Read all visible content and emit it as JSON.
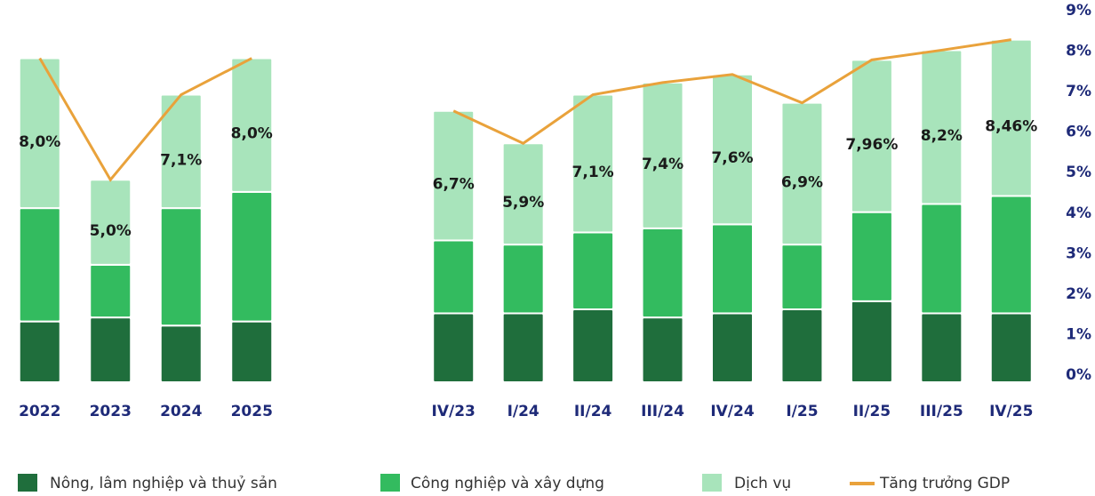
{
  "chart_data": [
    {
      "type": "bar",
      "stacked": true,
      "categories": [
        "2022",
        "2023",
        "2024",
        "2025"
      ],
      "ylim": [
        0,
        9
      ],
      "series": [
        {
          "name": "Nông, lâm nghiệp và thuỷ sản",
          "color": "#1f6e3c",
          "values": [
            1.5,
            1.6,
            1.4,
            1.5
          ]
        },
        {
          "name": "Công nghiệp và xây dựng",
          "color": "#33bb5f",
          "values": [
            2.8,
            1.3,
            2.9,
            3.2
          ]
        },
        {
          "name": "Dịch vụ",
          "color": "#a8e4bb",
          "values": [
            3.7,
            2.1,
            2.8,
            3.3
          ]
        },
        {
          "name": "Tăng trưởng GDP",
          "type": "line",
          "color": "#e9a23b",
          "values": [
            8.0,
            5.0,
            7.1,
            8.0
          ],
          "value_labels": [
            "8,0%",
            "5,0%",
            "7,1%",
            "8,0%"
          ]
        }
      ]
    },
    {
      "type": "bar",
      "stacked": true,
      "categories": [
        "IV/23",
        "I/24",
        "II/24",
        "III/24",
        "IV/24",
        "I/25",
        "II/25",
        "III/25",
        "IV/25"
      ],
      "ylim": [
        0,
        9
      ],
      "yticks": [
        {
          "value": 0,
          "label": "0%"
        },
        {
          "value": 1,
          "label": "1%"
        },
        {
          "value": 2,
          "label": "2%"
        },
        {
          "value": 3,
          "label": "3%"
        },
        {
          "value": 4,
          "label": "4%"
        },
        {
          "value": 5,
          "label": "5%"
        },
        {
          "value": 6,
          "label": "6%"
        },
        {
          "value": 7,
          "label": "7%"
        },
        {
          "value": 8,
          "label": "8%"
        },
        {
          "value": 9,
          "label": "9%"
        }
      ],
      "series": [
        {
          "name": "Nông, lâm nghiệp và thuỷ sản",
          "color": "#1f6e3c",
          "values": [
            1.7,
            1.7,
            1.8,
            1.6,
            1.7,
            1.8,
            2.0,
            1.7,
            1.7
          ]
        },
        {
          "name": "Công nghiệp và xây dựng",
          "color": "#33bb5f",
          "values": [
            1.8,
            1.7,
            1.9,
            2.2,
            2.2,
            1.6,
            2.2,
            2.7,
            2.9
          ]
        },
        {
          "name": "Dịch vụ",
          "color": "#a8e4bb",
          "values": [
            3.2,
            2.5,
            3.4,
            3.6,
            3.7,
            3.5,
            3.76,
            3.8,
            3.86
          ]
        },
        {
          "name": "Tăng trưởng GDP",
          "type": "line",
          "color": "#e9a23b",
          "values": [
            6.7,
            5.9,
            7.1,
            7.4,
            7.6,
            6.9,
            7.96,
            8.2,
            8.46
          ],
          "value_labels": [
            "6,7%",
            "5,9%",
            "7,1%",
            "7,4%",
            "7,6%",
            "6,9%",
            "7,96%",
            "8,2%",
            "8,46%"
          ]
        }
      ]
    }
  ]
}
